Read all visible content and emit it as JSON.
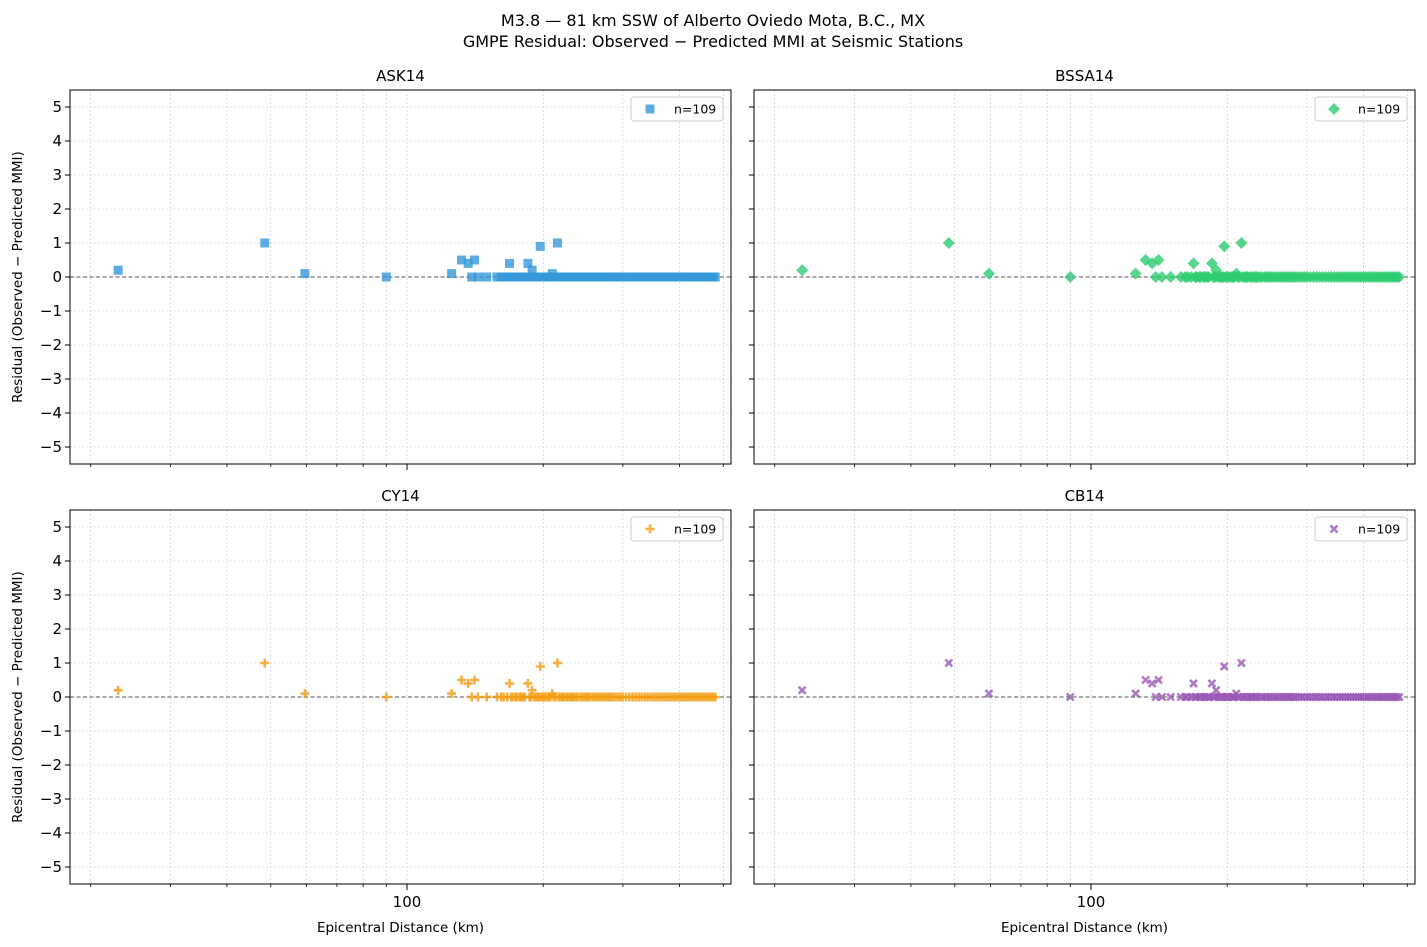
{
  "figure": {
    "title_line1": "M3.8 — 81 km SSW of Alberto Oviedo Mota, B.C., MX",
    "title_line2": "GMPE Residual: Observed − Predicted MMI at Seismic Stations"
  },
  "chart_data": {
    "type": "scatter",
    "x_scale": "log",
    "xlim": [
      18,
      520
    ],
    "ylim": [
      -5.5,
      5.5
    ],
    "yticks": [
      5,
      4,
      3,
      2,
      1,
      0,
      -1,
      -2,
      -3,
      -4,
      -5
    ],
    "xticks": [
      100
    ],
    "xlabel": "Epicentral Distance (km)",
    "ylabel": "Residual (Observed − Predicted MMI)",
    "grid": true,
    "zero_line": 0,
    "legend_position": "top-right",
    "x": [
      23.0,
      48.5,
      59.5,
      90.0,
      125.5,
      132.0,
      136.5,
      139.0,
      141.0,
      143.5,
      150.0,
      158.0,
      161.5,
      163.5,
      166.5,
      168.5,
      170.0,
      171.0,
      173.5,
      175.0,
      177.5,
      178.5,
      180.5,
      182.0,
      185.0,
      186.5,
      188.0,
      189.0,
      191.0,
      193.0,
      194.5,
      196.0,
      197.0,
      198.5,
      200.0,
      202.0,
      204.5,
      206.0,
      207.5,
      209.5,
      211.0,
      213.0,
      215.0,
      216.5,
      218.5,
      220.5,
      222.0,
      225.0,
      227.0,
      229.5,
      231.5,
      233.0,
      236.0,
      239.0,
      242.5,
      245.0,
      248.0,
      250.5,
      253.5,
      257.0,
      260.0,
      263.0,
      266.0,
      269.0,
      272.0,
      275.0,
      278.0,
      281.0,
      284.0,
      288.0,
      292.0,
      296.0,
      300.0,
      305.0,
      310.0,
      315.0,
      320.0,
      325.0,
      330.0,
      335.0,
      340.0,
      345.0,
      350.0,
      355.0,
      360.0,
      365.0,
      370.0,
      375.0,
      380.0,
      385.0,
      390.0,
      395.0,
      400.0,
      405.0,
      410.0,
      415.0,
      420.0,
      425.0,
      430.0,
      435.0,
      440.0,
      445.0,
      450.0,
      455.0,
      460.0,
      465.0,
      470.0,
      475.0,
      480.0
    ],
    "residuals": [
      0.2,
      1.0,
      0.1,
      0.0,
      0.1,
      0.5,
      0.4,
      0.0,
      0.5,
      0.0,
      0.0,
      0.0,
      0.0,
      0.0,
      0.0,
      0.4,
      0.0,
      0.0,
      0.0,
      0.0,
      0.0,
      0.0,
      0.0,
      0.0,
      0.4,
      0.0,
      0.0,
      0.2,
      0.0,
      0.0,
      0.0,
      0.0,
      0.9,
      0.0,
      0.0,
      0.0,
      0.0,
      0.0,
      0.0,
      0.1,
      0.0,
      0.0,
      1.0,
      0.0,
      0.0,
      0.0,
      0.0,
      0.0,
      0.0,
      0.0,
      0.0,
      0.0,
      0.0,
      0.0,
      0.0,
      0.0,
      0.0,
      0.0,
      0.0,
      0.0,
      0.0,
      0.0,
      0.0,
      0.0,
      0.0,
      0.0,
      0.0,
      0.0,
      0.0,
      0.0,
      0.0,
      0.0,
      0.0,
      0.0,
      0.0,
      0.0,
      0.0,
      0.0,
      0.0,
      0.0,
      0.0,
      0.0,
      0.0,
      0.0,
      0.0,
      0.0,
      0.0,
      0.0,
      0.0,
      0.0,
      0.0,
      0.0,
      0.0,
      0.0,
      0.0,
      0.0,
      0.0,
      0.0,
      0.0,
      0.0,
      0.0,
      0.0,
      0.0,
      0.0,
      0.0,
      0.0,
      0.0,
      0.0,
      0.0
    ],
    "panels": [
      {
        "title": "ASK14",
        "legend": "n=109",
        "marker": "square",
        "color": "#3498db"
      },
      {
        "title": "BSSA14",
        "legend": "n=109",
        "marker": "diamond",
        "color": "#2ecc71"
      },
      {
        "title": "CY14",
        "legend": "n=109",
        "marker": "plus",
        "color": "#f39c12"
      },
      {
        "title": "CB14",
        "legend": "n=109",
        "marker": "x",
        "color": "#9b59b6"
      }
    ]
  }
}
